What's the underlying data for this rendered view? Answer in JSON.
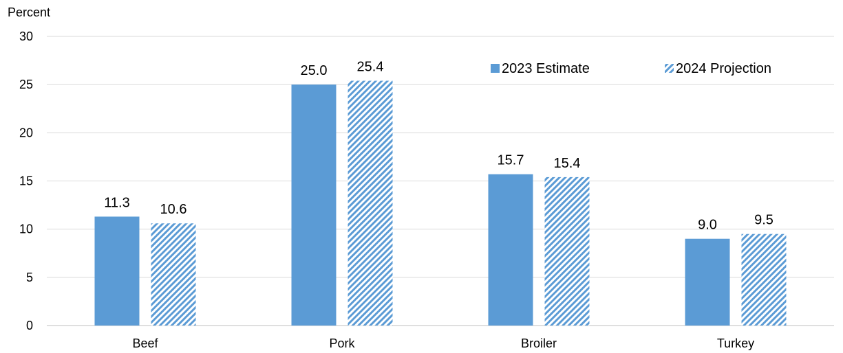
{
  "chart_data": {
    "type": "bar",
    "title": "",
    "ylabel": "Percent",
    "xlabel": "",
    "categories": [
      "Beef",
      "Pork",
      "Broiler",
      "Turkey"
    ],
    "ylim": [
      0,
      30
    ],
    "yticks": [
      0,
      5,
      10,
      15,
      20,
      25,
      30
    ],
    "grid": true,
    "legend_position": "top-right",
    "series": [
      {
        "name": "2023 Estimate",
        "pattern": "solid",
        "color": "#5B9BD5",
        "values": [
          11.3,
          25.0,
          15.7,
          9.0
        ],
        "labels": [
          "11.3",
          "25.0",
          "15.7",
          "9.0"
        ]
      },
      {
        "name": "2024 Projection",
        "pattern": "diagonal-hatch",
        "color": "#5B9BD5",
        "values": [
          10.6,
          25.4,
          15.4,
          9.5
        ],
        "labels": [
          "10.6",
          "25.4",
          "15.4",
          "9.5"
        ]
      }
    ]
  }
}
